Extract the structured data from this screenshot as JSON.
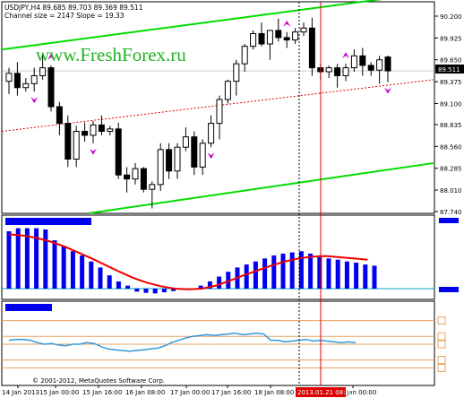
{
  "header": {
    "symbol_line": "USDJPY,H4  89.685 89.703 89.369 89.511",
    "channel_line": "Channel size = 2147 Slope = 19.33"
  },
  "watermark": "www.FreshForex.ru",
  "copyright": "© 2001-2012, MetaQuotes Software Corp.",
  "price_axis": {
    "ticks": [
      "90.200",
      "89.925",
      "89.650",
      "89.375",
      "89.100",
      "88.835",
      "88.560",
      "88.285",
      "88.010",
      "87.740"
    ],
    "current_price": "89.511"
  },
  "time_axis": {
    "labels": [
      "14 Jan 2013",
      "15 Jan 00:00",
      "15 Jan 16:00",
      "16 Jan 08:00",
      "17 Jan 00:00",
      "17 Jan 16:00",
      "18 Jan 08:00",
      "21 Jan 00:00"
    ],
    "highlight_label": "2013.01.21 08:00"
  },
  "colors": {
    "bull": "#ffffff",
    "bear": "#000000",
    "channel": "#00dd00",
    "midline": "#dd0000",
    "fractal": "#cc00cc",
    "histogram": "#0000ee",
    "signal": "#ee0000",
    "oscillator": "#3399dd",
    "levels": "#e8a060",
    "cursor": "#dd0000"
  },
  "chart_data": [
    {
      "type": "candlestick",
      "title": "USDJPY,H4",
      "ylim": [
        87.74,
        90.2
      ],
      "candles": [
        {
          "o": 89.38,
          "h": 89.55,
          "l": 89.22,
          "c": 89.48
        },
        {
          "o": 89.48,
          "h": 89.62,
          "l": 89.2,
          "c": 89.3
        },
        {
          "o": 89.3,
          "h": 89.42,
          "l": 89.25,
          "c": 89.35
        },
        {
          "o": 89.35,
          "h": 89.55,
          "l": 89.25,
          "c": 89.45
        },
        {
          "o": 89.45,
          "h": 89.74,
          "l": 89.4,
          "c": 89.55
        },
        {
          "o": 89.55,
          "h": 89.58,
          "l": 89.0,
          "c": 89.06
        },
        {
          "o": 89.06,
          "h": 89.12,
          "l": 88.7,
          "c": 88.85
        },
        {
          "o": 88.85,
          "h": 88.95,
          "l": 88.3,
          "c": 88.4
        },
        {
          "o": 88.4,
          "h": 88.82,
          "l": 88.3,
          "c": 88.75
        },
        {
          "o": 88.75,
          "h": 88.86,
          "l": 88.62,
          "c": 88.7
        },
        {
          "o": 88.7,
          "h": 88.88,
          "l": 88.6,
          "c": 88.83
        },
        {
          "o": 88.83,
          "h": 88.95,
          "l": 88.7,
          "c": 88.75
        },
        {
          "o": 88.75,
          "h": 88.82,
          "l": 88.7,
          "c": 88.78
        },
        {
          "o": 88.78,
          "h": 88.86,
          "l": 88.15,
          "c": 88.2
        },
        {
          "o": 88.2,
          "h": 88.3,
          "l": 87.98,
          "c": 88.15
        },
        {
          "o": 88.15,
          "h": 88.35,
          "l": 88.08,
          "c": 88.28
        },
        {
          "o": 88.28,
          "h": 88.3,
          "l": 87.98,
          "c": 88.02
        },
        {
          "o": 88.02,
          "h": 88.12,
          "l": 87.78,
          "c": 88.08
        },
        {
          "o": 88.08,
          "h": 88.6,
          "l": 88.0,
          "c": 88.52
        },
        {
          "o": 88.52,
          "h": 88.6,
          "l": 88.15,
          "c": 88.25
        },
        {
          "o": 88.25,
          "h": 88.6,
          "l": 88.15,
          "c": 88.55
        },
        {
          "o": 88.55,
          "h": 88.8,
          "l": 88.5,
          "c": 88.68
        },
        {
          "o": 88.68,
          "h": 88.75,
          "l": 88.2,
          "c": 88.3
        },
        {
          "o": 88.3,
          "h": 88.65,
          "l": 88.2,
          "c": 88.6
        },
        {
          "o": 88.6,
          "h": 88.95,
          "l": 88.55,
          "c": 88.85
        },
        {
          "o": 88.85,
          "h": 89.2,
          "l": 88.65,
          "c": 89.15
        },
        {
          "o": 89.15,
          "h": 89.4,
          "l": 89.1,
          "c": 89.38
        },
        {
          "o": 89.38,
          "h": 89.65,
          "l": 89.2,
          "c": 89.6
        },
        {
          "o": 89.6,
          "h": 89.85,
          "l": 89.5,
          "c": 89.82
        },
        {
          "o": 89.82,
          "h": 90.02,
          "l": 89.78,
          "c": 89.98
        },
        {
          "o": 89.98,
          "h": 90.12,
          "l": 89.82,
          "c": 89.85
        },
        {
          "o": 89.85,
          "h": 90.02,
          "l": 89.65,
          "c": 90.02
        },
        {
          "o": 90.02,
          "h": 90.17,
          "l": 89.88,
          "c": 89.93
        },
        {
          "o": 89.93,
          "h": 90.0,
          "l": 89.8,
          "c": 89.9
        },
        {
          "o": 89.9,
          "h": 90.05,
          "l": 89.85,
          "c": 90.0
        },
        {
          "o": 90.0,
          "h": 90.12,
          "l": 89.95,
          "c": 90.05
        },
        {
          "o": 90.05,
          "h": 90.18,
          "l": 89.45,
          "c": 89.55
        },
        {
          "o": 89.55,
          "h": 89.6,
          "l": 89.4,
          "c": 89.5
        },
        {
          "o": 89.5,
          "h": 89.58,
          "l": 89.42,
          "c": 89.55
        },
        {
          "o": 89.55,
          "h": 89.6,
          "l": 89.3,
          "c": 89.45
        },
        {
          "o": 89.45,
          "h": 89.6,
          "l": 89.38,
          "c": 89.55
        },
        {
          "o": 89.55,
          "h": 89.78,
          "l": 89.5,
          "c": 89.7
        },
        {
          "o": 89.7,
          "h": 89.8,
          "l": 89.45,
          "c": 89.58
        },
        {
          "o": 89.58,
          "h": 89.62,
          "l": 89.45,
          "c": 89.52
        },
        {
          "o": 89.52,
          "h": 89.7,
          "l": 89.35,
          "c": 89.65
        },
        {
          "o": 89.685,
          "h": 89.703,
          "l": 89.369,
          "c": 89.511
        }
      ],
      "upper_channel": [
        89.78,
        90.5
      ],
      "lower_channel": [
        87.72,
        88.35
      ],
      "midline": [
        88.75,
        89.4
      ],
      "fractals_up_at": [
        5,
        33,
        40,
        47
      ],
      "fractals_down_at": [
        3,
        10,
        24,
        45
      ]
    },
    {
      "type": "bar",
      "histogram": [
        0.95,
        1.0,
        1.0,
        1.0,
        0.98,
        0.8,
        0.7,
        0.62,
        0.55,
        0.45,
        0.35,
        0.22,
        0.12,
        0.05,
        -0.05,
        -0.07,
        -0.08,
        -0.06,
        -0.04,
        -0.02,
        0.0,
        0.05,
        0.12,
        0.2,
        0.28,
        0.35,
        0.4,
        0.45,
        0.5,
        0.55,
        0.58,
        0.6,
        0.62,
        0.58,
        0.55,
        0.5,
        0.48,
        0.45,
        0.43,
        0.4,
        0.38
      ],
      "signal": [
        0.9,
        0.88,
        0.84,
        0.78,
        0.7,
        0.6,
        0.5,
        0.39,
        0.28,
        0.18,
        0.1,
        0.04,
        0.0,
        -0.01,
        0.0,
        0.05,
        0.13,
        0.22,
        0.3,
        0.38,
        0.45,
        0.5,
        0.53,
        0.54,
        0.52,
        0.5,
        0.48
      ],
      "ylim": [
        -0.15,
        1.1
      ]
    },
    {
      "type": "line",
      "values": [
        55,
        56,
        56,
        55,
        52,
        50,
        51,
        49,
        48,
        50,
        50,
        52,
        51,
        47,
        44,
        43,
        42,
        41,
        42,
        43,
        44,
        45,
        48,
        52,
        55,
        58,
        60,
        61,
        62,
        61,
        62,
        63,
        64,
        62,
        63,
        64,
        63,
        55,
        55,
        53,
        54,
        55,
        56,
        54,
        55,
        54,
        53,
        52,
        53,
        52
      ],
      "levels": [
        80,
        60,
        50,
        30,
        20
      ],
      "ylim": [
        0,
        100
      ]
    }
  ]
}
